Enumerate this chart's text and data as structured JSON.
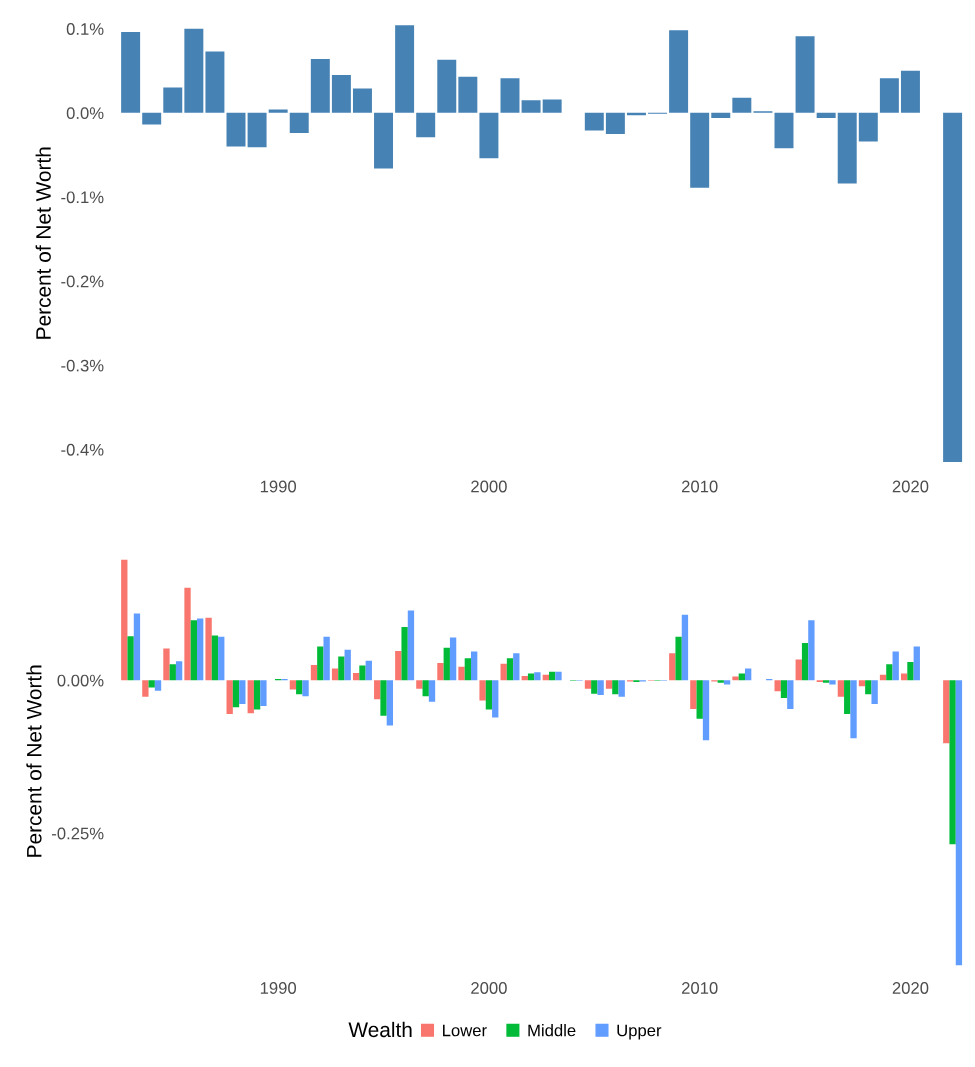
{
  "chart_data": [
    {
      "type": "bar",
      "ylabel": "Percent of Net Worth",
      "x": [
        1983,
        1984,
        1985,
        1986,
        1987,
        1988,
        1989,
        1990,
        1991,
        1992,
        1993,
        1994,
        1995,
        1996,
        1997,
        1998,
        1999,
        2000,
        2001,
        2002,
        2003,
        2004,
        2005,
        2006,
        2007,
        2008,
        2009,
        2010,
        2011,
        2012,
        2013,
        2014,
        2015,
        2016,
        2017,
        2018,
        2019,
        2020,
        2021,
        2022
      ],
      "values": [
        0.096,
        -0.014,
        0.03,
        0.1,
        0.073,
        -0.04,
        -0.041,
        0.004,
        -0.024,
        0.064,
        0.045,
        0.029,
        -0.066,
        0.104,
        -0.029,
        0.063,
        0.043,
        -0.054,
        0.041,
        0.015,
        0.016,
        0.0,
        -0.021,
        -0.025,
        -0.003,
        -0.001,
        0.098,
        -0.089,
        -0.006,
        0.018,
        0.002,
        -0.042,
        0.091,
        -0.006,
        -0.084,
        -0.034,
        0.041,
        0.05,
        0.0,
        -0.415
      ],
      "color": "#4682b4",
      "xlim": [
        1982.4,
        2022.6
      ],
      "xticks": [
        1990,
        2000,
        2010,
        2020
      ],
      "ylim": [
        -0.42,
        0.11
      ],
      "yticks": [
        {
          "value": -0.4,
          "label": "-0.4%"
        },
        {
          "value": -0.3,
          "label": "-0.3%"
        },
        {
          "value": -0.2,
          "label": "-0.2%"
        },
        {
          "value": -0.1,
          "label": "-0.1%"
        },
        {
          "value": 0.0,
          "label": "0.0%"
        },
        {
          "value": 0.1,
          "label": "0.1%"
        }
      ],
      "grid": false,
      "legend": false
    },
    {
      "type": "bar",
      "ylabel": "Percent of Net Worth",
      "legend_title": "Wealth",
      "legend": "bottom",
      "grid": false,
      "x": [
        1983,
        1984,
        1985,
        1986,
        1987,
        1988,
        1989,
        1990,
        1991,
        1992,
        1993,
        1994,
        1995,
        1996,
        1997,
        1998,
        1999,
        2000,
        2001,
        2002,
        2003,
        2004,
        2005,
        2006,
        2007,
        2008,
        2009,
        2010,
        2011,
        2012,
        2013,
        2014,
        2015,
        2016,
        2017,
        2018,
        2019,
        2020,
        2021,
        2022
      ],
      "series": [
        {
          "name": "Lower",
          "color": "#f8766d",
          "values": [
            0.197,
            -0.027,
            0.052,
            0.151,
            0.102,
            -0.055,
            -0.054,
            null,
            -0.015,
            0.025,
            0.019,
            0.012,
            -0.031,
            0.048,
            -0.014,
            0.028,
            0.022,
            -0.033,
            0.027,
            0.007,
            0.009,
            0.0,
            -0.014,
            -0.014,
            -0.002,
            -0.001,
            0.044,
            -0.047,
            -0.002,
            0.006,
            null,
            -0.018,
            0.034,
            -0.003,
            -0.027,
            -0.01,
            0.009,
            0.011,
            null,
            -0.103
          ]
        },
        {
          "name": "Middle",
          "color": "#00ba38",
          "values": [
            0.072,
            -0.012,
            0.026,
            0.098,
            0.073,
            -0.044,
            -0.048,
            0.002,
            -0.023,
            0.055,
            0.039,
            0.024,
            -0.058,
            0.087,
            -0.026,
            0.053,
            0.036,
            -0.048,
            0.036,
            0.011,
            0.014,
            -0.001,
            -0.022,
            -0.023,
            -0.003,
            -0.001,
            0.071,
            -0.063,
            -0.004,
            0.011,
            null,
            -0.029,
            0.061,
            -0.004,
            -0.055,
            -0.023,
            0.026,
            0.03,
            0.0,
            -0.268
          ]
        },
        {
          "name": "Upper",
          "color": "#619cff",
          "values": [
            0.109,
            -0.017,
            0.031,
            0.101,
            0.071,
            -0.039,
            -0.042,
            0.002,
            -0.026,
            0.071,
            0.05,
            0.032,
            -0.074,
            0.114,
            -0.035,
            0.07,
            0.047,
            -0.061,
            0.044,
            0.013,
            0.014,
            -0.001,
            -0.024,
            -0.027,
            -0.002,
            -0.001,
            0.107,
            -0.098,
            -0.007,
            0.019,
            0.002,
            -0.047,
            0.098,
            -0.007,
            -0.095,
            -0.039,
            0.047,
            0.055,
            0.0,
            -0.466
          ]
        }
      ],
      "xlim": [
        1982.4,
        2022.6
      ],
      "xticks": [
        1990,
        2000,
        2010,
        2020
      ],
      "ylim": [
        -0.47,
        0.205
      ],
      "yticks": [
        {
          "value": -0.25,
          "label": "-0.25%"
        },
        {
          "value": 0.0,
          "label": "0.00%"
        }
      ]
    }
  ]
}
